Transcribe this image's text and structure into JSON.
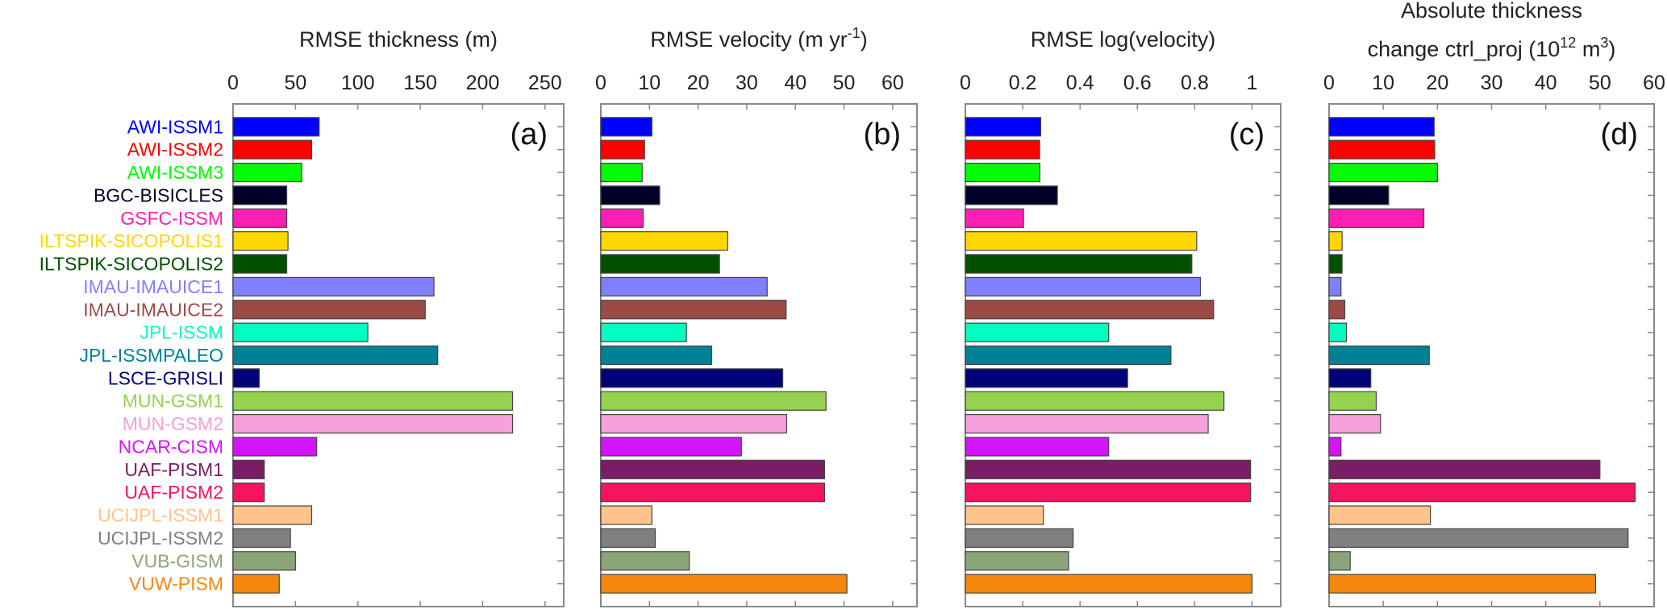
{
  "models": [
    {
      "name": "AWI-ISSM1",
      "color": "#0000ff"
    },
    {
      "name": "AWI-ISSM2",
      "color": "#ff0000"
    },
    {
      "name": "AWI-ISSM3",
      "color": "#00ff00"
    },
    {
      "name": "BGC-BISICLES",
      "color": "#000028"
    },
    {
      "name": "GSFC-ISSM",
      "color": "#ff1eb4"
    },
    {
      "name": "ILTSPIK-SICOPOLIS1",
      "color": "#ffd700"
    },
    {
      "name": "ILTSPIK-SICOPOLIS2",
      "color": "#005000"
    },
    {
      "name": "IMAU-IMAUICE1",
      "color": "#8080ff"
    },
    {
      "name": "IMAU-IMAUICE2",
      "color": "#9b4b46"
    },
    {
      "name": "JPL-ISSM",
      "color": "#00ffc0"
    },
    {
      "name": "JPL-ISSMPALEO",
      "color": "#008296"
    },
    {
      "name": "LSCE-GRISLI",
      "color": "#000078"
    },
    {
      "name": "MUN-GSM1",
      "color": "#96d250"
    },
    {
      "name": "MUN-GSM2",
      "color": "#f5a0dc"
    },
    {
      "name": "NCAR-CISM",
      "color": "#d214ff"
    },
    {
      "name": "UAF-PISM1",
      "color": "#781e64"
    },
    {
      "name": "UAF-PISM2",
      "color": "#f5145f"
    },
    {
      "name": "UCIJPL-ISSM1",
      "color": "#ffc38c"
    },
    {
      "name": "UCIJPL-ISSM2",
      "color": "#808080"
    },
    {
      "name": "VUB-GISM",
      "color": "#8ca578"
    },
    {
      "name": "VUW-PISM",
      "color": "#f5870f"
    }
  ],
  "chart_data": [
    {
      "type": "bar",
      "orientation": "horizontal",
      "panel_label": "(a)",
      "title": [
        "RMSE thickness (m)"
      ],
      "xlim": [
        0,
        265
      ],
      "xticks": [
        0,
        50,
        100,
        150,
        200,
        250
      ],
      "xtick_labels": [
        "0",
        "50",
        "100",
        "150",
        "200",
        "250"
      ],
      "values": [
        69,
        63,
        55,
        43,
        43,
        44,
        43,
        161,
        154,
        108,
        164,
        21,
        224,
        224,
        67,
        25,
        25,
        63,
        46,
        50,
        37
      ]
    },
    {
      "type": "bar",
      "orientation": "horizontal",
      "panel_label": "(b)",
      "title": [
        "RMSE velocity (m yr",
        "-1",
        ")"
      ],
      "xlim": [
        0,
        65
      ],
      "xticks": [
        0,
        10,
        20,
        30,
        40,
        50,
        60
      ],
      "xtick_labels": [
        "0",
        "10",
        "20",
        "30",
        "40",
        "50",
        "60"
      ],
      "values": [
        10.5,
        9.0,
        8.5,
        12.1,
        8.7,
        26.1,
        24.4,
        34.2,
        38.1,
        17.6,
        22.8,
        37.4,
        46.3,
        38.2,
        28.9,
        46.0,
        46.0,
        10.5,
        11.2,
        18.2,
        50.6
      ]
    },
    {
      "type": "bar",
      "orientation": "horizontal",
      "panel_label": "(c)",
      "title": [
        "RMSE log(velocity)"
      ],
      "xlim": [
        0,
        1.1
      ],
      "xticks": [
        0,
        0.2,
        0.4,
        0.6,
        0.8,
        1
      ],
      "xtick_labels": [
        "0",
        "0.2",
        "0.4",
        "0.6",
        "0.8",
        "1"
      ],
      "values": [
        0.263,
        0.259,
        0.26,
        0.321,
        0.203,
        0.807,
        0.79,
        0.82,
        0.866,
        0.5,
        0.717,
        0.566,
        0.902,
        0.847,
        0.5,
        0.995,
        0.995,
        0.272,
        0.376,
        0.36,
        1.0
      ]
    },
    {
      "type": "bar",
      "orientation": "horizontal",
      "panel_label": "(d)",
      "title": [
        "Absolute thickness",
        "change ctrl_proj (10",
        "12",
        " m",
        "3",
        ")"
      ],
      "xlim": [
        0,
        60
      ],
      "xticks": [
        0,
        10,
        20,
        30,
        40,
        50,
        60
      ],
      "xtick_labels": [
        "0",
        "10",
        "20",
        "30",
        "40",
        "50",
        "60"
      ],
      "values": [
        19.4,
        19.5,
        20.0,
        11.0,
        17.5,
        2.4,
        2.4,
        2.2,
        2.9,
        3.2,
        18.5,
        7.7,
        8.7,
        9.5,
        2.2,
        50.0,
        56.5,
        18.7,
        55.2,
        3.9,
        49.2
      ]
    }
  ]
}
